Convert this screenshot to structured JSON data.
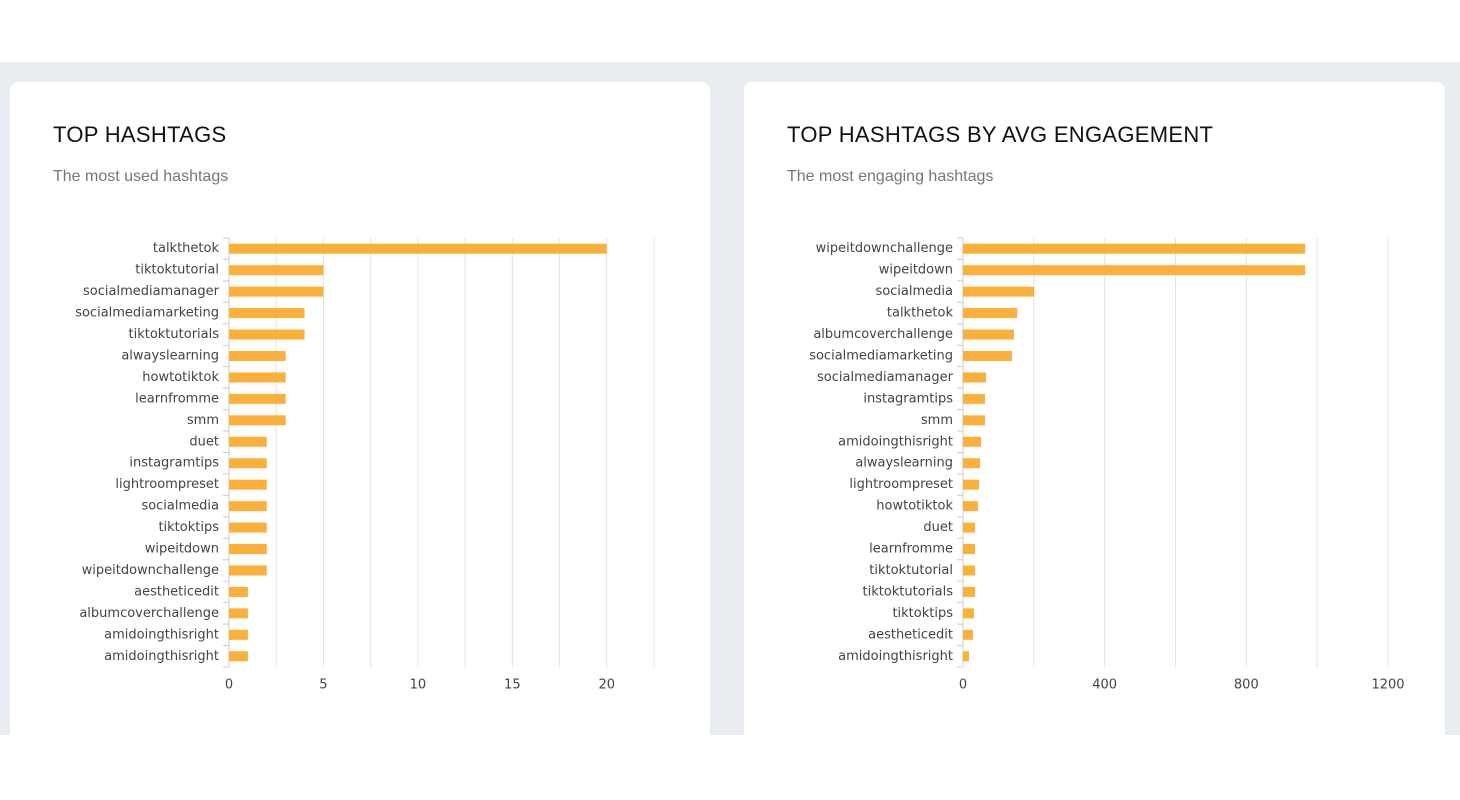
{
  "chart_data": [
    {
      "type": "bar",
      "orientation": "horizontal",
      "title": "TOP HASHTAGS",
      "subtitle": "The most used hashtags",
      "categories": [
        "talkthetok",
        "tiktoktutorial",
        "socialmediamanager",
        "socialmediamarketing",
        "tiktoktutorials",
        "alwayslearning",
        "howtotiktok",
        "learnfromme",
        "smm",
        "duet",
        "instagramtips",
        "lightroompreset",
        "socialmedia",
        "tiktoktips",
        "wipeitdown",
        "wipeitdownchallenge",
        "aestheticedit",
        "albumcoverchallenge",
        "amidoingthisright",
        "amidoingthisright"
      ],
      "values": [
        20,
        5,
        5,
        4,
        4,
        3,
        3,
        3,
        3,
        2,
        2,
        2,
        2,
        2,
        2,
        2,
        1,
        1,
        1,
        1
      ],
      "color": "#fbb03b",
      "xlim": [
        0,
        22.5
      ],
      "xticks": [
        0,
        5,
        10,
        15,
        20
      ],
      "minor_gridlines": [
        2.5,
        7.5,
        12.5,
        17.5,
        22.5
      ],
      "grid": true
    },
    {
      "type": "bar",
      "orientation": "horizontal",
      "title": "TOP HASHTAGS BY AVG ENGAGEMENT",
      "subtitle": "The most engaging hashtags",
      "categories": [
        "wipeitdownchallenge",
        "wipeitdown",
        "socialmedia",
        "talkthetok",
        "albumcoverchallenge",
        "socialmediamarketing",
        "socialmediamanager",
        "instagramtips",
        "smm",
        "amidoingthisright",
        "alwayslearning",
        "lightroompreset",
        "howtotiktok",
        "duet",
        "learnfromme",
        "tiktoktutorial",
        "tiktoktutorials",
        "tiktoktips",
        "aestheticedit",
        "amidoingthisright"
      ],
      "values": [
        966,
        966,
        201,
        153,
        144,
        138,
        65,
        62,
        62,
        51,
        48,
        45,
        42,
        34,
        34,
        34,
        34,
        31,
        28,
        17
      ],
      "color": "#fbb03b",
      "xlim": [
        0,
        1200
      ],
      "xticks": [
        0,
        400,
        800,
        1200
      ],
      "minor_gridlines": [
        200,
        600,
        1000
      ],
      "grid": true
    }
  ]
}
